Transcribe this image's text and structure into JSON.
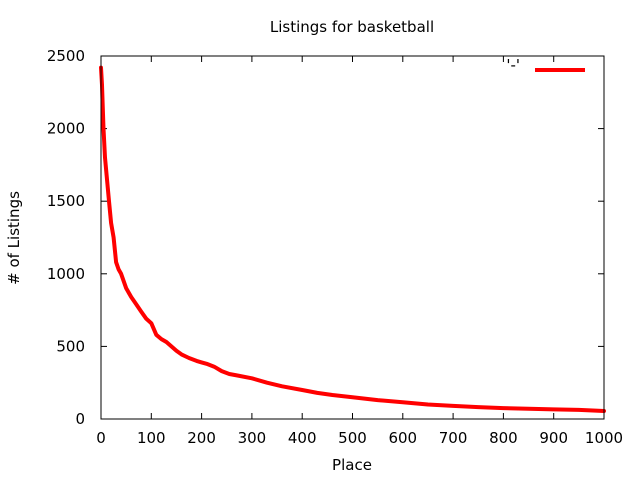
{
  "chart_data": {
    "type": "line",
    "title": "Listings for basketball",
    "xlabel": "Place",
    "ylabel": "# of Listings",
    "xlim": [
      0,
      1000
    ],
    "ylim": [
      0,
      2500
    ],
    "xticks": [
      0,
      100,
      200,
      300,
      400,
      500,
      600,
      700,
      800,
      900,
      1000
    ],
    "yticks": [
      0,
      500,
      1000,
      1500,
      2000,
      2500
    ],
    "grid": false,
    "legend_position": "top-right",
    "series": [
      {
        "name": "'-'",
        "color": "#ff0000",
        "x": [
          0,
          2,
          5,
          8,
          12,
          16,
          20,
          25,
          30,
          35,
          40,
          50,
          60,
          70,
          80,
          90,
          100,
          110,
          120,
          130,
          140,
          150,
          160,
          175,
          190,
          200,
          210,
          225,
          240,
          255,
          270,
          300,
          330,
          360,
          400,
          430,
          460,
          500,
          550,
          600,
          650,
          700,
          750,
          800,
          850,
          900,
          950,
          1000
        ],
        "y": [
          2420,
          2300,
          2000,
          1800,
          1650,
          1500,
          1350,
          1250,
          1080,
          1030,
          1000,
          900,
          840,
          790,
          740,
          690,
          660,
          580,
          550,
          530,
          500,
          470,
          445,
          420,
          400,
          390,
          380,
          360,
          330,
          310,
          300,
          280,
          250,
          225,
          200,
          180,
          165,
          150,
          130,
          115,
          100,
          90,
          82,
          75,
          70,
          66,
          63,
          55
        ]
      }
    ]
  }
}
